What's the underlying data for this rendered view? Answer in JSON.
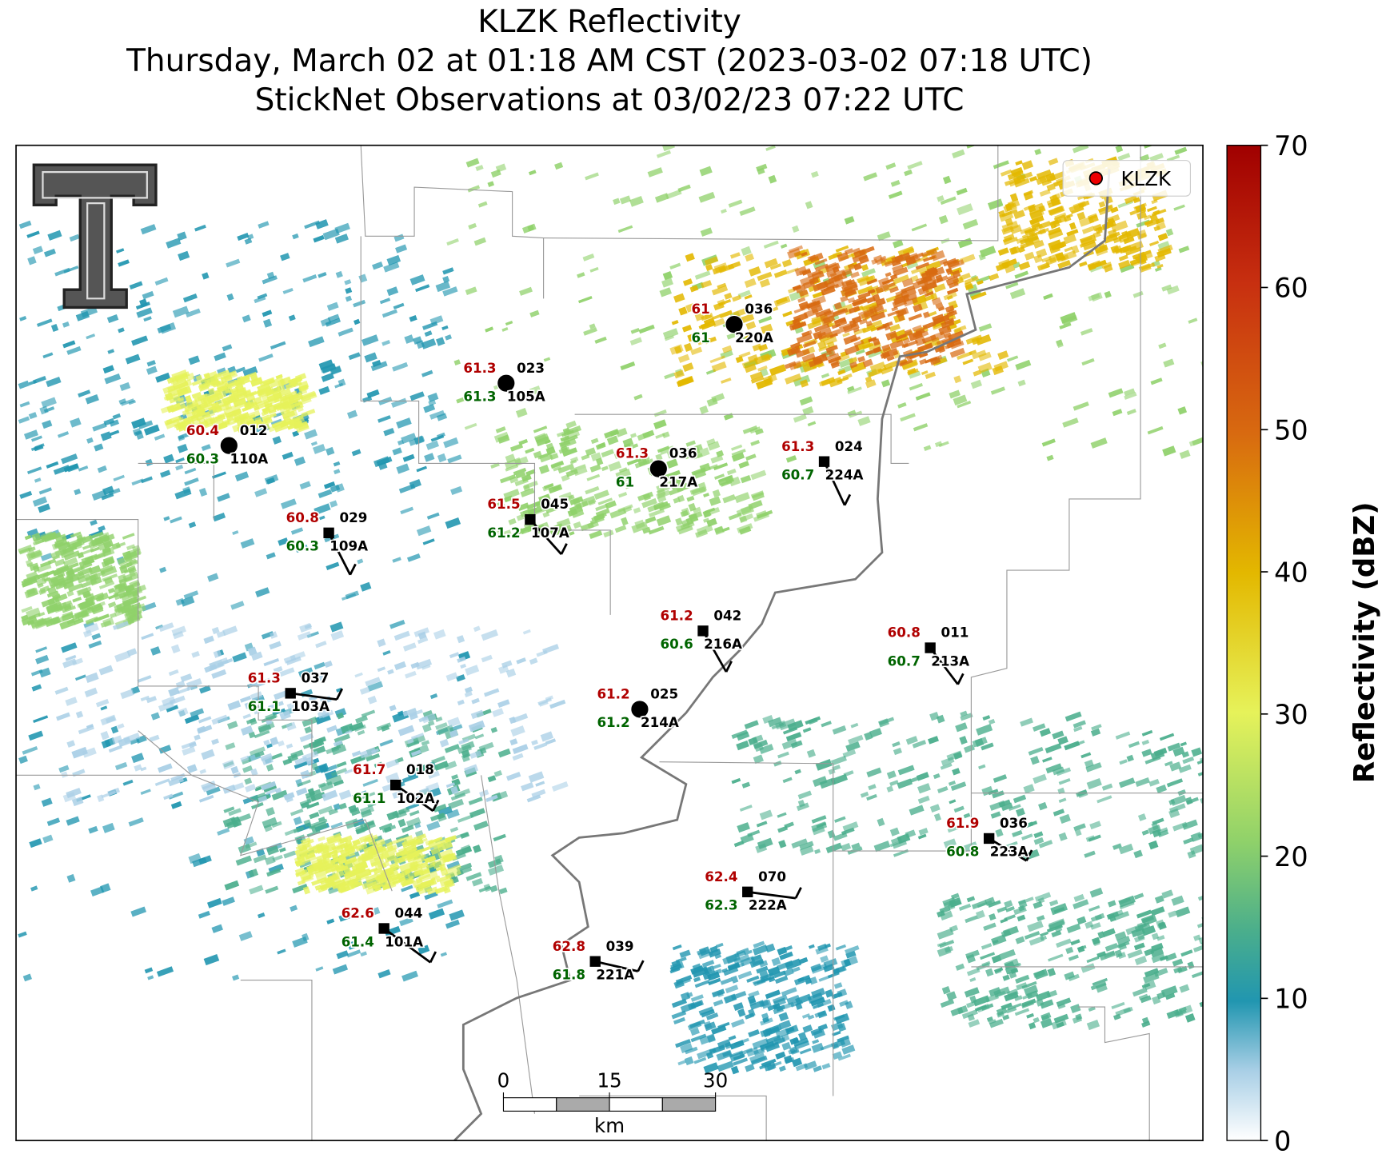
{
  "title": [
    "KLZK Reflectivity",
    "Thursday, March 02 at 01:18 AM CST (2023-03-02 07:18 UTC)",
    "StickNet Observations at 03/02/23 07:22 UTC"
  ],
  "legend": "KLZK",
  "colorbar": {
    "label": "Reflectivity (dBZ)",
    "lim": [
      0,
      70
    ],
    "ticks": [
      0,
      10,
      20,
      30,
      40,
      50,
      60,
      70
    ]
  },
  "scale_bar": {
    "ticks": [
      0,
      15,
      30
    ],
    "unit": "km"
  },
  "stations": [
    {
      "id": "110A",
      "temperature": 60.4,
      "dewpoint": 60.3,
      "wind": "012"
    },
    {
      "id": "105A",
      "temperature": 61.3,
      "dewpoint": 61.3,
      "wind": "023"
    },
    {
      "id": "220A",
      "temperature": 61.0,
      "dewpoint": 61.0,
      "wind": "036"
    },
    {
      "id": "217A",
      "temperature": 61.3,
      "dewpoint": 61.0,
      "wind": "036"
    },
    {
      "id": "224A",
      "temperature": 61.3,
      "dewpoint": 60.7,
      "wind": "024"
    },
    {
      "id": "107A",
      "temperature": 61.5,
      "dewpoint": 61.2,
      "wind": "045"
    },
    {
      "id": "109A",
      "temperature": 60.8,
      "dewpoint": 60.3,
      "wind": "029"
    },
    {
      "id": "216A",
      "temperature": 61.2,
      "dewpoint": 60.6,
      "wind": "042"
    },
    {
      "id": "213A",
      "temperature": 60.8,
      "dewpoint": 60.7,
      "wind": "011"
    },
    {
      "id": "103A",
      "temperature": 61.3,
      "dewpoint": 61.1,
      "wind": "037"
    },
    {
      "id": "214A",
      "temperature": 61.2,
      "dewpoint": 61.2,
      "wind": "025"
    },
    {
      "id": "102A",
      "temperature": 61.7,
      "dewpoint": 61.1,
      "wind": "018"
    },
    {
      "id": "223A",
      "temperature": 61.9,
      "dewpoint": 60.8,
      "wind": "036"
    },
    {
      "id": "222A",
      "temperature": 62.4,
      "dewpoint": 62.3,
      "wind": "070"
    },
    {
      "id": "101A",
      "temperature": 62.6,
      "dewpoint": 61.4,
      "wind": "044"
    },
    {
      "id": "221A",
      "temperature": 62.8,
      "dewpoint": 61.8,
      "wind": "039"
    }
  ]
}
